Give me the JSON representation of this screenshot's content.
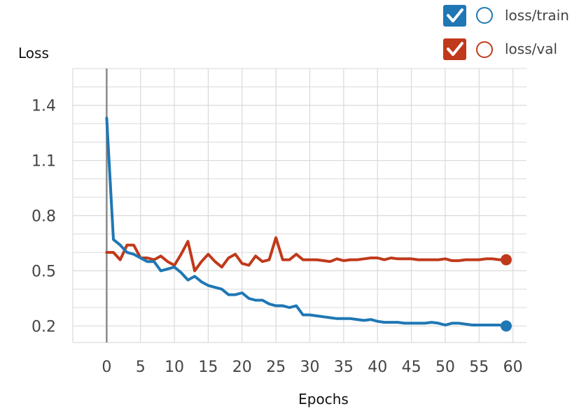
{
  "chart_data": {
    "type": "line",
    "xlabel": "Epochs",
    "ylabel": "Loss",
    "xlim": [
      -5,
      62
    ],
    "ylim": [
      0.11,
      1.6
    ],
    "x_ticks": [
      0,
      5,
      10,
      15,
      20,
      25,
      30,
      35,
      40,
      45,
      50,
      55,
      60
    ],
    "y_ticks": [
      0.2,
      0.5,
      0.8,
      1.1,
      1.4
    ],
    "y_tick_labels": [
      "0.2",
      "0.5",
      "0.8",
      "1.1",
      "1.4"
    ],
    "grid": true,
    "legend_position": "top-right",
    "series": [
      {
        "name": "loss/train",
        "color": "#1f77b4",
        "checked": true,
        "x": [
          0,
          1,
          2,
          3,
          4,
          5,
          6,
          7,
          8,
          9,
          10,
          11,
          12,
          13,
          14,
          15,
          16,
          17,
          18,
          19,
          20,
          21,
          22,
          23,
          24,
          25,
          26,
          27,
          28,
          29,
          30,
          31,
          32,
          33,
          34,
          35,
          36,
          37,
          38,
          39,
          40,
          41,
          42,
          43,
          44,
          45,
          46,
          47,
          48,
          49,
          50,
          51,
          52,
          53,
          54,
          55,
          56,
          57,
          58,
          59
        ],
        "values": [
          1.33,
          0.67,
          0.64,
          0.6,
          0.59,
          0.57,
          0.55,
          0.55,
          0.5,
          0.51,
          0.52,
          0.49,
          0.45,
          0.47,
          0.44,
          0.42,
          0.41,
          0.4,
          0.37,
          0.37,
          0.38,
          0.35,
          0.34,
          0.34,
          0.32,
          0.31,
          0.31,
          0.3,
          0.31,
          0.26,
          0.26,
          0.255,
          0.25,
          0.245,
          0.24,
          0.24,
          0.24,
          0.235,
          0.23,
          0.235,
          0.225,
          0.22,
          0.22,
          0.22,
          0.215,
          0.215,
          0.215,
          0.215,
          0.22,
          0.215,
          0.205,
          0.215,
          0.215,
          0.21,
          0.205,
          0.205,
          0.205,
          0.205,
          0.205,
          0.2
        ]
      },
      {
        "name": "loss/val",
        "color": "#c0391b",
        "checked": true,
        "x": [
          0,
          1,
          2,
          3,
          4,
          5,
          6,
          7,
          8,
          9,
          10,
          11,
          12,
          13,
          14,
          15,
          16,
          17,
          18,
          19,
          20,
          21,
          22,
          23,
          24,
          25,
          26,
          27,
          28,
          29,
          30,
          31,
          32,
          33,
          34,
          35,
          36,
          37,
          38,
          39,
          40,
          41,
          42,
          43,
          44,
          45,
          46,
          47,
          48,
          49,
          50,
          51,
          52,
          53,
          54,
          55,
          56,
          57,
          58,
          59
        ],
        "values": [
          0.6,
          0.6,
          0.56,
          0.64,
          0.64,
          0.57,
          0.57,
          0.56,
          0.58,
          0.55,
          0.53,
          0.59,
          0.66,
          0.5,
          0.55,
          0.59,
          0.55,
          0.52,
          0.57,
          0.59,
          0.54,
          0.53,
          0.58,
          0.55,
          0.56,
          0.68,
          0.56,
          0.56,
          0.59,
          0.56,
          0.56,
          0.56,
          0.555,
          0.55,
          0.565,
          0.555,
          0.56,
          0.56,
          0.565,
          0.57,
          0.57,
          0.56,
          0.57,
          0.565,
          0.565,
          0.565,
          0.56,
          0.56,
          0.56,
          0.56,
          0.565,
          0.555,
          0.555,
          0.56,
          0.56,
          0.56,
          0.565,
          0.565,
          0.56,
          0.56
        ]
      }
    ]
  }
}
